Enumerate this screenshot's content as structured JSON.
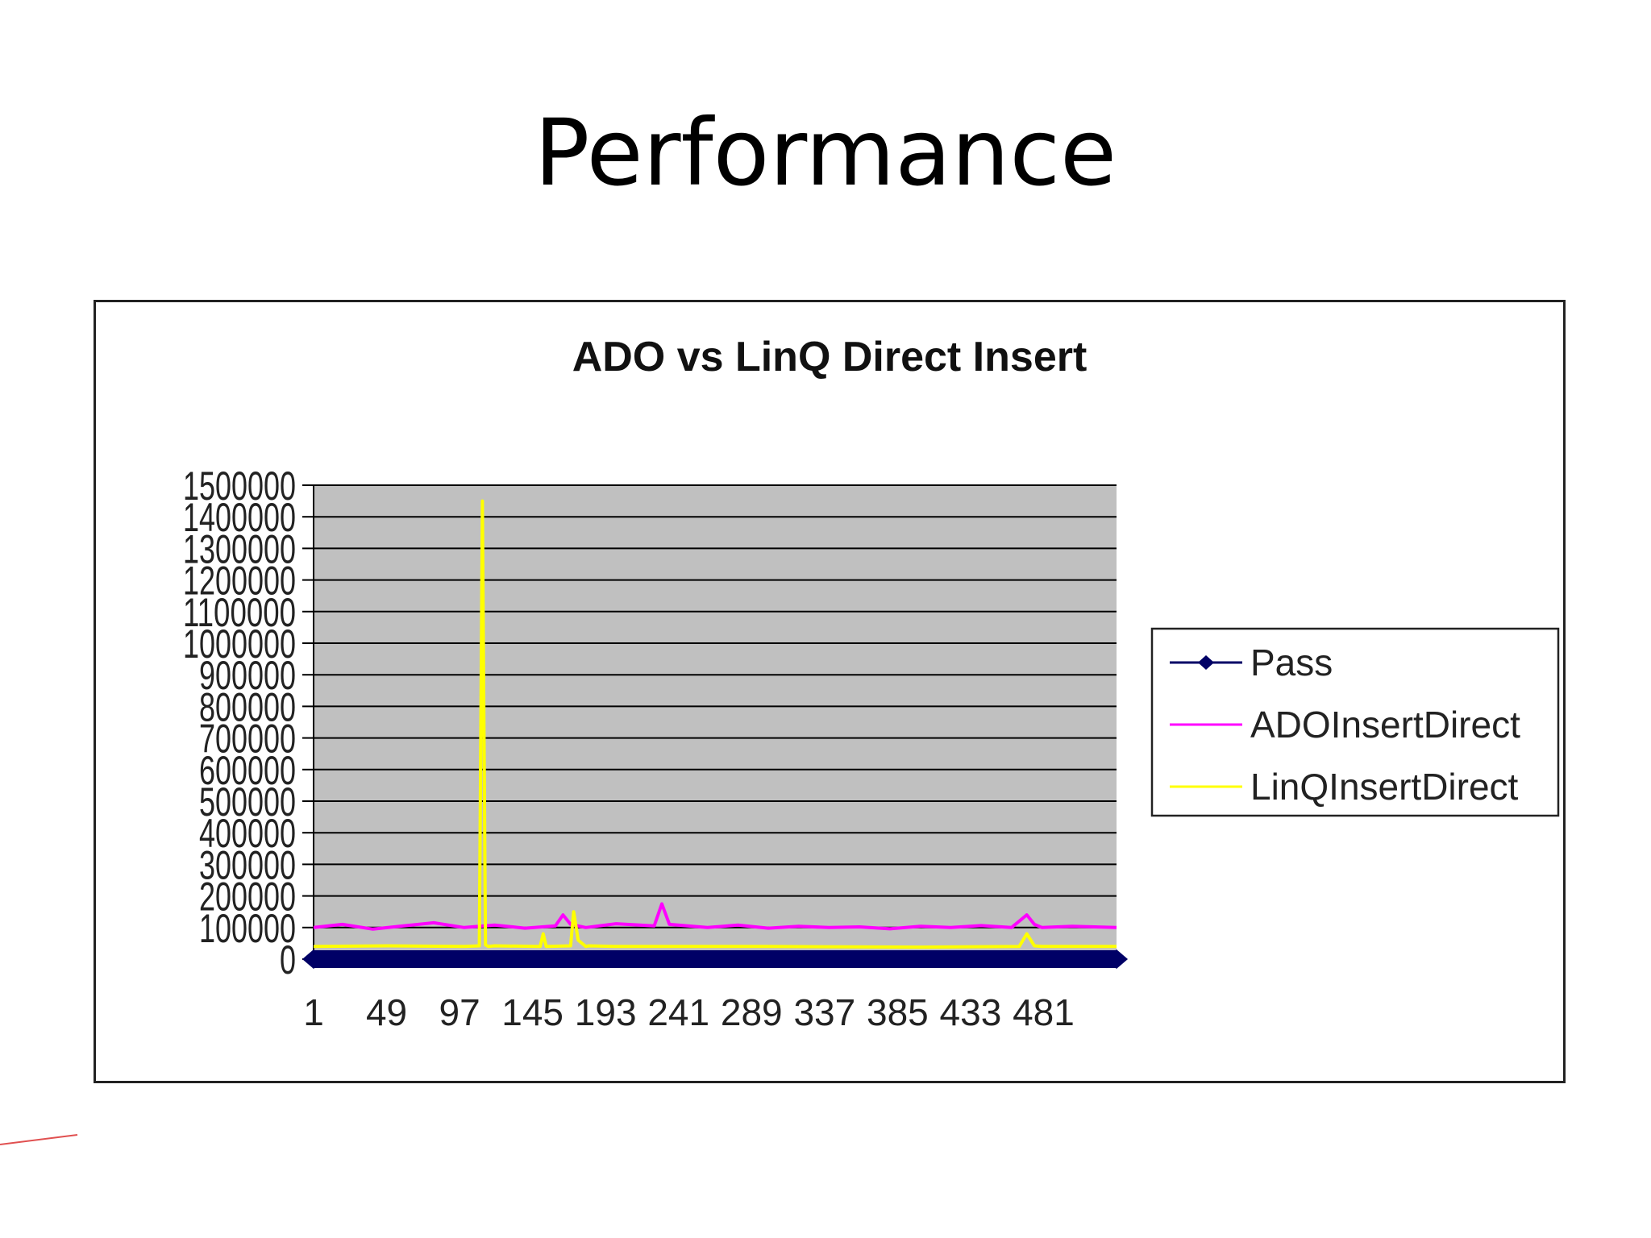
{
  "slide": {
    "title": "Performance"
  },
  "chart_data": {
    "type": "line",
    "title": "ADO vs LinQ Direct Insert",
    "xlabel": "",
    "ylabel": "",
    "ylim": [
      0,
      1500000
    ],
    "y_ticks": [
      "0",
      "100000",
      "200000",
      "300000",
      "400000",
      "500000",
      "600000",
      "700000",
      "800000",
      "900000",
      "1000000",
      "1100000",
      "1200000",
      "1300000",
      "1400000",
      "1500000"
    ],
    "x_ticks": [
      "1",
      "49",
      "97",
      "145",
      "193",
      "241",
      "289",
      "337",
      "385",
      "433",
      "481"
    ],
    "xlim": [
      1,
      529
    ],
    "grid": true,
    "plot_background": "#c0c0c0",
    "legend_position": "right",
    "series": [
      {
        "name": "Pass",
        "color": "#000066",
        "marker": "diamond",
        "x": [
          1,
          529
        ],
        "values": [
          0,
          0
        ]
      },
      {
        "name": "ADOInsertDirect",
        "color": "#ff00ff",
        "marker": "none",
        "x": [
          1,
          20,
          40,
          60,
          80,
          100,
          120,
          140,
          160,
          165,
          170,
          180,
          200,
          225,
          230,
          235,
          260,
          280,
          300,
          320,
          340,
          360,
          380,
          400,
          420,
          440,
          460,
          470,
          475,
          480,
          500,
          529
        ],
        "values": [
          100000,
          110000,
          95000,
          105000,
          115000,
          100000,
          108000,
          98000,
          105000,
          140000,
          110000,
          100000,
          112000,
          105000,
          175000,
          110000,
          100000,
          108000,
          98000,
          104000,
          100000,
          102000,
          96000,
          104000,
          100000,
          106000,
          100000,
          140000,
          110000,
          100000,
          104000,
          100000
        ]
      },
      {
        "name": "LinQInsertDirect",
        "color": "#ffff00",
        "marker": "none",
        "x": [
          1,
          50,
          100,
          110,
          112,
          114,
          116,
          120,
          150,
          152,
          154,
          170,
          172,
          175,
          180,
          182,
          200,
          300,
          400,
          465,
          470,
          475,
          480,
          529
        ],
        "values": [
          40000,
          42000,
          40000,
          42000,
          1450000,
          45000,
          40000,
          42000,
          40000,
          80000,
          40000,
          42000,
          150000,
          60000,
          40000,
          42000,
          40000,
          40000,
          38000,
          40000,
          80000,
          42000,
          40000,
          40000
        ]
      }
    ]
  }
}
